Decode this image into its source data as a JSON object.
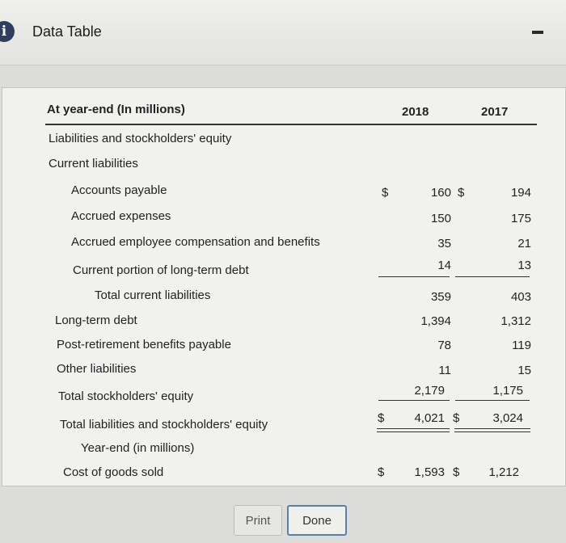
{
  "window": {
    "title": "Data Table"
  },
  "table": {
    "header": {
      "label": "At year-end (In millions)",
      "col1": "2018",
      "col2": "2017"
    },
    "rows": [
      {
        "label": "Liabilities and stockholders' equity",
        "v1": "",
        "v2": ""
      },
      {
        "label": "Current liabilities",
        "v1": "",
        "v2": ""
      },
      {
        "label": "Accounts payable",
        "cur1": "$",
        "v1": "160",
        "cur2": "$",
        "v2": "194"
      },
      {
        "label": "Accrued expenses",
        "v1": "150",
        "v2": "175"
      },
      {
        "label": "Accrued employee compensation and benefits",
        "v1": "35",
        "v2": "21"
      },
      {
        "label": "Current portion of long-term debt",
        "v1": "14",
        "v2": "13"
      },
      {
        "label": "Total current liabilities",
        "v1": "359",
        "v2": "403"
      },
      {
        "label": "Long-term debt",
        "v1": "1,394",
        "v2": "1,312"
      },
      {
        "label": "Post-retirement benefits payable",
        "v1": "78",
        "v2": "119"
      },
      {
        "label": "Other liabilities",
        "v1": "11",
        "v2": "15"
      },
      {
        "label": "Total stockholders' equity",
        "v1": "2,179",
        "v2": "1,175"
      },
      {
        "label": "Total liabilities and stockholders' equity",
        "cur1": "$",
        "v1": "4,021",
        "cur2": "$",
        "v2": "3,024"
      },
      {
        "label": "Year-end (in millions)",
        "v1": "",
        "v2": ""
      },
      {
        "label": "Cost of goods sold",
        "cur1": "$",
        "v1": "1,593",
        "cur2": "$",
        "v2": "1,212"
      }
    ]
  },
  "buttons": {
    "print": "Print",
    "done": "Done"
  }
}
